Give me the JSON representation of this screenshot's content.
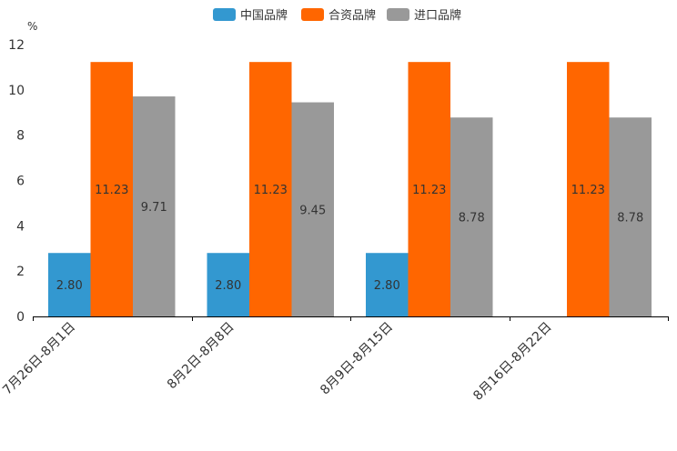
{
  "chart_data": {
    "type": "bar",
    "unit": "%",
    "categories": [
      "7月26日-8月1日",
      "8月2日-8月8日",
      "8月9日-8月15日",
      "8月16日-8月22日"
    ],
    "series": [
      {
        "name": "中国品牌",
        "color": "#3398d0",
        "values": [
          2.8,
          2.8,
          2.8,
          null
        ],
        "labels": [
          "2.80",
          "2.80",
          "2.80",
          ""
        ]
      },
      {
        "name": "合资品牌",
        "color": "#ff6600",
        "values": [
          11.23,
          11.23,
          11.23,
          11.23
        ],
        "labels": [
          "11.23",
          "11.23",
          "11.23",
          "11.23"
        ]
      },
      {
        "name": "进口品牌",
        "color": "#999999",
        "values": [
          9.71,
          9.45,
          8.78,
          8.78
        ],
        "labels": [
          "9.71",
          "9.45",
          "8.78",
          "8.78"
        ]
      }
    ],
    "ylim": [
      0,
      12
    ],
    "yticks": [
      "0",
      "2",
      "4",
      "6",
      "8",
      "10",
      "12"
    ],
    "legend_position": "top-center"
  }
}
